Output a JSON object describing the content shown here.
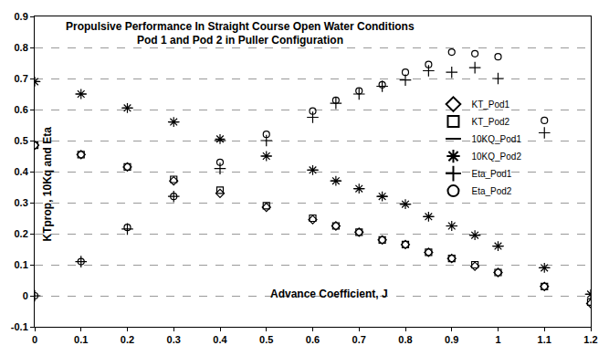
{
  "chart_data": {
    "type": "scatter",
    "title": "Propulsive Performance In Straight Course Open Water Conditions",
    "subtitle": "Pod 1 and Pod 2 in Puller Configuration",
    "x_label": "Advance Coefficient, J",
    "y_label": "KTprop, 10Kq and Eta",
    "x": [
      0,
      0.1,
      0.2,
      0.3,
      0.4,
      0.5,
      0.6,
      0.65,
      0.7,
      0.75,
      0.8,
      0.85,
      0.9,
      0.95,
      1.0,
      1.1,
      1.2
    ],
    "series": [
      {
        "name": "KT_Pod1",
        "color": "#000000",
        "marker": "diamond",
        "values": [
          0.485,
          0.455,
          0.415,
          0.37,
          0.33,
          0.285,
          0.245,
          0.225,
          0.205,
          0.18,
          0.165,
          0.14,
          0.12,
          0.095,
          0.075,
          0.03,
          -0.025
        ]
      },
      {
        "name": "KT_Pod2",
        "color": "#000000",
        "marker": "square",
        "values": [
          0.485,
          0.455,
          0.415,
          0.375,
          0.34,
          0.29,
          0.25,
          0.225,
          0.205,
          0.18,
          0.165,
          0.14,
          0.12,
          0.1,
          0.075,
          0.03,
          -0.02
        ]
      },
      {
        "name": "10KQ_Pod1",
        "color": "#000000",
        "marker": "dash",
        "values": [
          0.69,
          0.65,
          0.605,
          0.56,
          0.5,
          0.45,
          0.405,
          0.37,
          0.345,
          0.32,
          0.295,
          0.255,
          0.225,
          0.195,
          0.16,
          0.09,
          0.005
        ]
      },
      {
        "name": "10KQ_Pod2",
        "color": "#000000",
        "marker": "asterisk",
        "values": [
          0.69,
          0.65,
          0.605,
          0.56,
          0.505,
          0.45,
          0.405,
          0.37,
          0.345,
          0.32,
          0.295,
          0.255,
          0.225,
          0.195,
          0.16,
          0.09,
          0.005
        ]
      },
      {
        "name": "Eta_Pod1",
        "color": "#000000",
        "marker": "cross",
        "values": [
          0,
          0.11,
          0.215,
          0.32,
          0.41,
          0.5,
          0.575,
          0.62,
          0.65,
          0.675,
          0.695,
          0.725,
          0.72,
          0.735,
          0.7,
          0.525,
          null
        ]
      },
      {
        "name": "Eta_Pod2",
        "color": "#000000",
        "marker": "circle",
        "values": [
          0,
          0.11,
          0.22,
          0.32,
          0.43,
          0.52,
          0.595,
          0.63,
          0.66,
          0.68,
          0.72,
          0.745,
          0.785,
          0.78,
          0.77,
          0.565,
          null
        ]
      }
    ],
    "xlim": [
      0,
      1.2
    ],
    "xticks": [
      0,
      0.1,
      0.2,
      0.3,
      0.4,
      0.5,
      0.6,
      0.7,
      0.8,
      0.9,
      1,
      1.1,
      1.2
    ],
    "ylim": [
      -0.1,
      0.9
    ],
    "yticks": [
      -0.1,
      0,
      0.1,
      0.2,
      0.3,
      0.4,
      0.5,
      0.6,
      0.7,
      0.8,
      0.9
    ],
    "grid": true,
    "legend": "right"
  }
}
